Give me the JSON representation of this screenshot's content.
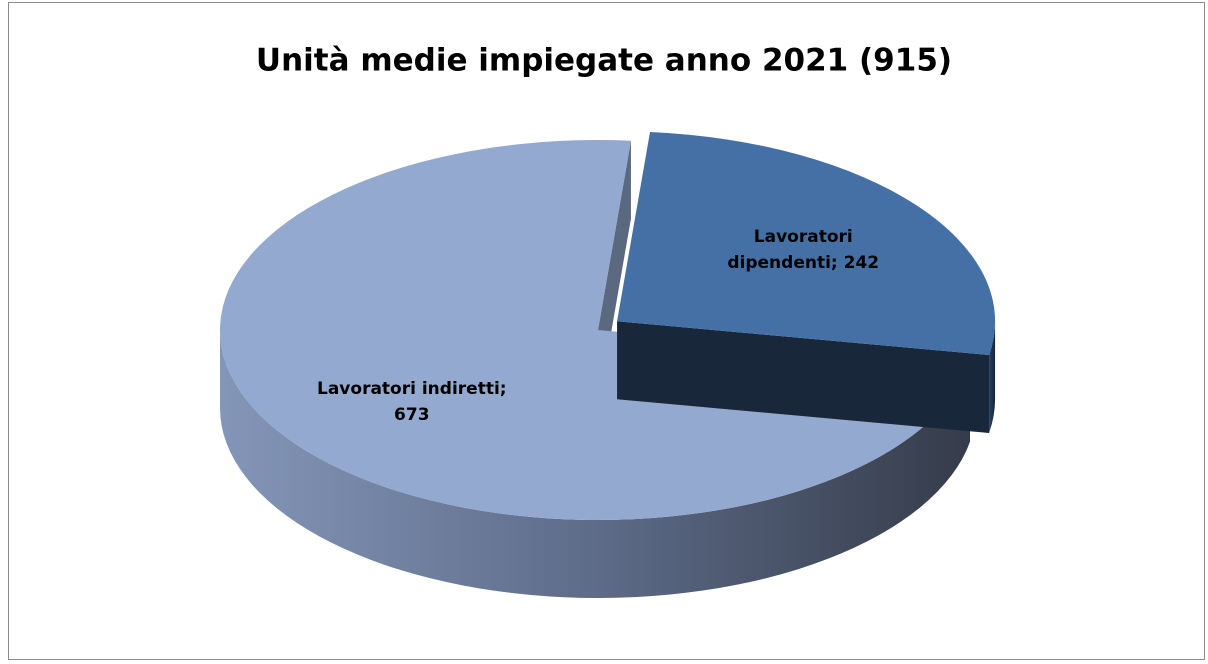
{
  "chart_data": {
    "type": "pie",
    "title": "Unità medie impiegate anno 2021 (915)",
    "values": [
      242,
      673
    ],
    "value_labels": [
      "Lavoratori dipendenti; 242",
      "Lavoratori indiretti; 673"
    ],
    "colors": [
      "#4470a6",
      "#93a9cf"
    ],
    "exploded": [
      true,
      false
    ]
  }
}
